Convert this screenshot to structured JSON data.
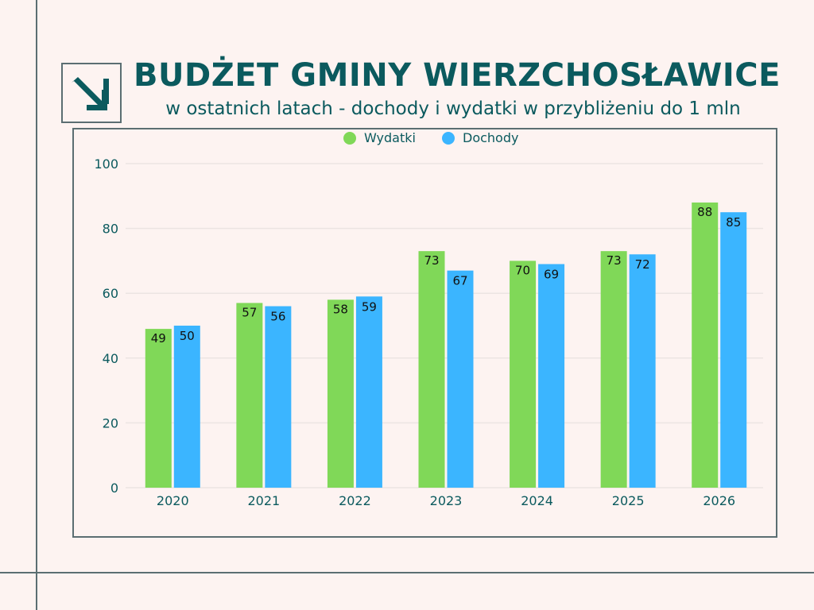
{
  "header": {
    "title": "BUDŻET GMINY WIERZCHOSŁAWICE",
    "subtitle": "w ostatnich latach - dochody i wydatki w przybliżeniu do 1 mln",
    "logo_icon": "arrow-down-right-icon"
  },
  "colors": {
    "background": "#fdf3f1",
    "title": "#0b5a5e",
    "frame": "#5b6e72",
    "wydatki": "#80d858",
    "dochody": "#3bb5ff",
    "grid": "#ece4e2"
  },
  "chart_data": {
    "type": "bar",
    "title": "BUDŻET GMINY WIERZCHOSŁAWICE",
    "subtitle": "w ostatnich latach - dochody i wydatki w przybliżeniu do 1 mln",
    "xlabel": "",
    "ylabel": "",
    "categories": [
      "2020",
      "2021",
      "2022",
      "2023",
      "2024",
      "2025",
      "2026"
    ],
    "series": [
      {
        "name": "Wydatki",
        "color": "#80d858",
        "values": [
          49,
          57,
          58,
          73,
          70,
          73,
          88
        ]
      },
      {
        "name": "Dochody",
        "color": "#3bb5ff",
        "values": [
          50,
          56,
          59,
          67,
          69,
          72,
          85
        ]
      }
    ],
    "ylim": [
      0,
      100
    ],
    "yticks": [
      0,
      20,
      40,
      60,
      80,
      100
    ],
    "grid": true,
    "legend": "top-center",
    "data_labels": true
  }
}
